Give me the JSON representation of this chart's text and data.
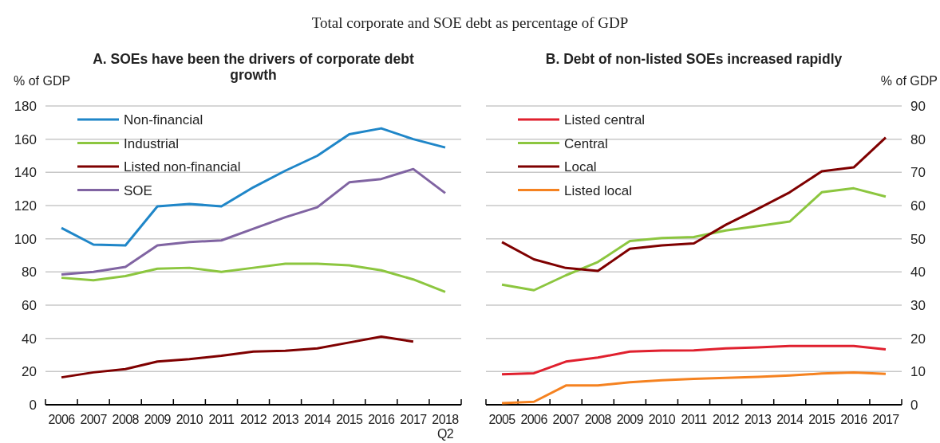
{
  "chart_data": [
    {
      "type": "line",
      "title": "A. SOEs have been the drivers of corporate debt growth",
      "ylabel": "% of GDP",
      "annotations": [
        "Total corporate and SOE debt as percentage of GDP"
      ],
      "categories": [
        "2006",
        "2007",
        "2008",
        "2009",
        "2010",
        "2011",
        "2012",
        "2013",
        "2014",
        "2015",
        "2016",
        "2017",
        "2018\nQ2"
      ],
      "ylim": [
        0,
        180
      ],
      "yticks": [
        0,
        20,
        40,
        60,
        80,
        100,
        120,
        140,
        160,
        180
      ],
      "grid": "y",
      "legend": "top left",
      "series": [
        {
          "name": "Non-financial",
          "color": "#1f86c8",
          "values": [
            106.5,
            96.5,
            96,
            119.5,
            121,
            119.5,
            131,
            141,
            150,
            163,
            166.5,
            160,
            155
          ]
        },
        {
          "name": "Industrial",
          "color": "#8cc63f",
          "values": [
            76.5,
            75,
            77.5,
            82,
            82.5,
            80,
            82.5,
            85,
            85,
            84,
            81,
            75.5,
            68
          ]
        },
        {
          "name": "Listed non-financial",
          "color": "#7f0000",
          "values": [
            16.5,
            19.5,
            21.5,
            26,
            27.5,
            29.5,
            32,
            32.5,
            34,
            37.5,
            41,
            38,
            null
          ]
        },
        {
          "name": "SOE",
          "color": "#8064a2",
          "values": [
            78.5,
            80,
            83,
            96,
            98,
            99,
            106,
            113,
            119,
            134,
            136,
            142,
            127.5
          ]
        }
      ]
    },
    {
      "type": "line",
      "title": "B. Debt of non-listed SOEs increased rapidly",
      "y2label": "% of GDP",
      "categories": [
        "2005",
        "2006",
        "2007",
        "2008",
        "2009",
        "2010",
        "2011",
        "2012",
        "2013",
        "2014",
        "2015",
        "2016",
        "2017"
      ],
      "y2lim": [
        0,
        90
      ],
      "y2ticks": [
        0,
        10,
        20,
        30,
        40,
        50,
        60,
        70,
        80,
        90
      ],
      "grid": "y",
      "legend": "top left",
      "series": [
        {
          "name": "Listed central",
          "color": "#e0202e",
          "axis": "y2",
          "values": [
            9.2,
            9.5,
            13,
            14.2,
            16,
            16.3,
            16.4,
            17,
            17.3,
            17.7,
            17.7,
            17.7,
            16.7
          ]
        },
        {
          "name": "Central",
          "color": "#8cc63f",
          "axis": "y2",
          "values": [
            36.2,
            34.5,
            39,
            43,
            49.3,
            50.2,
            50.5,
            52.5,
            53.8,
            55.2,
            64,
            65.2,
            62.7
          ]
        },
        {
          "name": "Local",
          "color": "#7f0000",
          "axis": "y2",
          "values": [
            49,
            43.8,
            41.2,
            40.3,
            47,
            48,
            48.6,
            54.2,
            59,
            64,
            70.3,
            71.5,
            80.5
          ]
        },
        {
          "name": "Listed local",
          "color": "#f58220",
          "axis": "y2",
          "values": [
            0.5,
            0.9,
            5.8,
            5.8,
            6.8,
            7.4,
            7.8,
            8.1,
            8.4,
            8.8,
            9.4,
            9.7,
            9.3
          ]
        }
      ]
    }
  ]
}
